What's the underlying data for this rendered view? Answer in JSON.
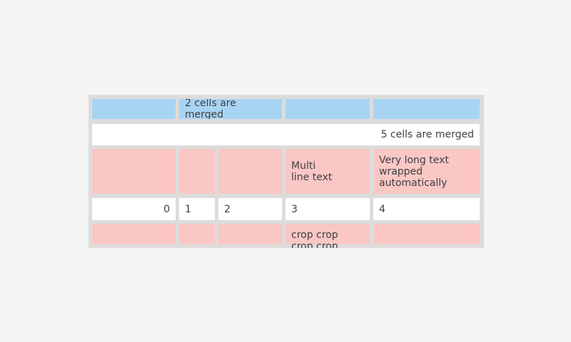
{
  "colors": {
    "page_background": "#f5f5f5",
    "table_grid": "#dcdcdc",
    "cell_blue": "#a8d4f4",
    "cell_pink": "#fac7c5",
    "cell_white": "#ffffff",
    "text": "#3f3f3f"
  },
  "table": {
    "row_blue": {
      "col1": "",
      "merged_2cols": "2 cells are merged",
      "col4": "",
      "col5": ""
    },
    "row_merged5": {
      "merged_5cols": "5 cells are merged"
    },
    "row_pink": {
      "col1": "",
      "col2": "",
      "col3": "",
      "col4": "Multi\nline text",
      "col5": "Very long text wrapped automatically"
    },
    "row_numbers": {
      "col1": "0",
      "col2": "1",
      "col3": "2",
      "col4": "3",
      "col5": "4"
    },
    "row_crop": {
      "col1": "",
      "col2": "",
      "col3": "",
      "col4": "crop crop\ncrop crop",
      "col5": ""
    }
  }
}
